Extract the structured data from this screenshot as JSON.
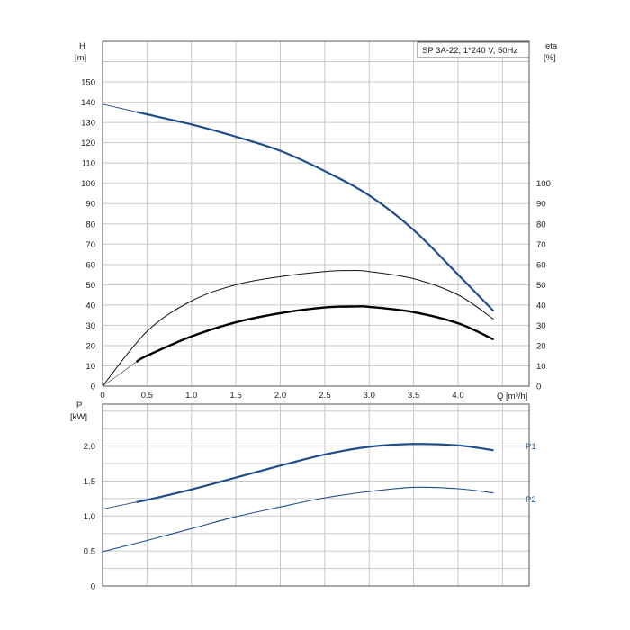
{
  "chart_data": [
    {
      "type": "line",
      "title": "SP 3A-22, 1*240 V, 50Hz",
      "xlabel": "Q [m³/h]",
      "ylabel_left": "H",
      "ylabel_left_unit": "[m]",
      "ylabel_right": "eta",
      "ylabel_right_unit": "[%]",
      "xlim": [
        0,
        4.8
      ],
      "ylim_left": [
        0,
        170
      ],
      "ylim_right": [
        0,
        170
      ],
      "x_ticks": [
        "0",
        "0.5",
        "1.0",
        "1.5",
        "2.0",
        "2.5",
        "3.0",
        "3.5",
        "4.0"
      ],
      "y_ticks_left": [
        "0",
        "10",
        "20",
        "30",
        "40",
        "50",
        "60",
        "70",
        "80",
        "90",
        "100",
        "110",
        "120",
        "130",
        "140",
        "150"
      ],
      "y_ticks_right": [
        "0",
        "10",
        "20",
        "30",
        "40",
        "50",
        "60",
        "70",
        "80",
        "90",
        "100"
      ],
      "grid": true,
      "series": [
        {
          "key": "H",
          "color": "#1f4e8c",
          "x": [
            0,
            0.5,
            1.0,
            1.5,
            2.0,
            2.5,
            3.0,
            3.5,
            4.0,
            4.4
          ],
          "y": [
            139,
            134,
            129,
            123,
            116,
            106,
            94,
            77,
            55,
            37
          ],
          "operating_from": 0.38
        },
        {
          "key": "eta_thin",
          "color": "#111111",
          "x": [
            0,
            0.5,
            1.0,
            1.5,
            2.0,
            2.5,
            2.8,
            3.0,
            3.5,
            4.0,
            4.4
          ],
          "y": [
            0,
            27,
            42,
            50,
            54,
            56.5,
            57,
            56.5,
            53,
            45,
            33
          ]
        },
        {
          "key": "eta_thick",
          "color": "#000000",
          "x": [
            0.38,
            0.5,
            1.0,
            1.5,
            2.0,
            2.5,
            2.85,
            3.0,
            3.5,
            4.0,
            4.4
          ],
          "y": [
            12,
            15,
            24.5,
            31.5,
            36,
            38.8,
            39.3,
            39.1,
            36.5,
            31,
            23
          ]
        }
      ]
    },
    {
      "type": "line",
      "ylabel": "P",
      "ylabel_unit": "[kW]",
      "xlim": [
        0,
        4.8
      ],
      "ylim": [
        0,
        2.6
      ],
      "y_ticks": [
        "0",
        "0.5",
        "1.0",
        "1.5",
        "2.0"
      ],
      "grid": true,
      "series": [
        {
          "name": "P1",
          "color": "#1f4e8c",
          "x": [
            0,
            0.5,
            1.0,
            1.5,
            2.0,
            2.5,
            3.0,
            3.5,
            4.0,
            4.4
          ],
          "y": [
            1.1,
            1.23,
            1.38,
            1.55,
            1.72,
            1.88,
            1.99,
            2.03,
            2.01,
            1.94
          ],
          "operating_from": 0.38
        },
        {
          "name": "P2",
          "color": "#1f4e8c",
          "x": [
            0,
            0.5,
            1.0,
            1.5,
            2.0,
            2.5,
            3.0,
            3.5,
            4.0,
            4.4
          ],
          "y": [
            0.49,
            0.65,
            0.82,
            0.99,
            1.13,
            1.26,
            1.35,
            1.41,
            1.39,
            1.33
          ]
        }
      ]
    }
  ]
}
